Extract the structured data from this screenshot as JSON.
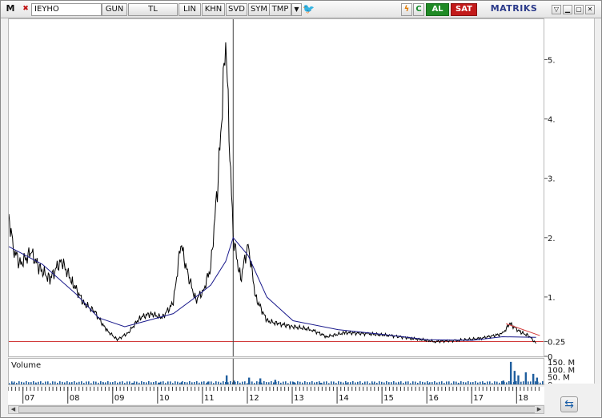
{
  "toolbar": {
    "logo": "M",
    "symbol": "IEYHO",
    "period": "GUN",
    "currency": "TL",
    "scale": "LIN",
    "khn": "KHN",
    "svd": "SVD",
    "sym": "SYM",
    "tmp": "TMP",
    "buy_label": "AL",
    "sell_label": "SAT",
    "brand": "MATRIKS"
  },
  "volume_panel": {
    "title": "Volume",
    "axis_labels": [
      "150. M",
      "100. M",
      "50. M",
      "0"
    ]
  },
  "colors": {
    "price": "#000000",
    "moving_average": "#1a1a8c",
    "support_line": "#d23a3a",
    "volume_bars": "#1f5e9e",
    "buy": "#1f8a25",
    "sell": "#c21a1a"
  },
  "chart_data": {
    "type": "line",
    "series": [
      {
        "values": [
          {
            "x": "2006-09",
            "y": 2.4
          },
          {
            "x": "2006-10",
            "y": 1.85
          },
          {
            "x": "2006-12",
            "y": 1.55
          },
          {
            "x": "2007-03",
            "y": 1.75
          },
          {
            "x": "2007-05",
            "y": 1.5
          },
          {
            "x": "2007-08",
            "y": 1.3
          },
          {
            "x": "2007-11",
            "y": 1.62
          },
          {
            "x": "2008-02",
            "y": 1.25
          },
          {
            "x": "2008-05",
            "y": 0.9
          },
          {
            "x": "2008-08",
            "y": 0.75
          },
          {
            "x": "2008-11",
            "y": 0.45
          },
          {
            "x": "2009-02",
            "y": 0.28
          },
          {
            "x": "2009-05",
            "y": 0.4
          },
          {
            "x": "2009-08",
            "y": 0.65
          },
          {
            "x": "2009-11",
            "y": 0.72
          },
          {
            "x": "2010-02",
            "y": 0.65
          },
          {
            "x": "2010-05",
            "y": 0.9
          },
          {
            "x": "2010-07",
            "y": 1.9
          },
          {
            "x": "2010-09",
            "y": 1.35
          },
          {
            "x": "2010-11",
            "y": 0.95
          },
          {
            "x": "2011-01",
            "y": 1.1
          },
          {
            "x": "2011-03",
            "y": 1.5
          },
          {
            "x": "2011-05",
            "y": 3.0
          },
          {
            "x": "2011-07",
            "y": 5.3
          },
          {
            "x": "2011-09",
            "y": 2.0
          },
          {
            "x": "2011-11",
            "y": 1.3
          },
          {
            "x": "2012-01",
            "y": 1.9
          },
          {
            "x": "2012-03",
            "y": 1.0
          },
          {
            "x": "2012-06",
            "y": 0.6
          },
          {
            "x": "2012-09",
            "y": 0.55
          },
          {
            "x": "2013-01",
            "y": 0.5
          },
          {
            "x": "2013-06",
            "y": 0.45
          },
          {
            "x": "2013-10",
            "y": 0.33
          },
          {
            "x": "2014-03",
            "y": 0.4
          },
          {
            "x": "2014-09",
            "y": 0.38
          },
          {
            "x": "2015-03",
            "y": 0.35
          },
          {
            "x": "2015-09",
            "y": 0.3
          },
          {
            "x": "2016-03",
            "y": 0.25
          },
          {
            "x": "2016-09",
            "y": 0.27
          },
          {
            "x": "2017-03",
            "y": 0.3
          },
          {
            "x": "2017-09",
            "y": 0.38
          },
          {
            "x": "2017-11",
            "y": 0.55
          },
          {
            "x": "2018-02",
            "y": 0.4
          },
          {
            "x": "2018-04",
            "y": 0.35
          },
          {
            "x": "2018-06",
            "y": 0.22
          }
        ]
      },
      {
        "values": [
          {
            "x": "2006-09",
            "y": 1.85
          },
          {
            "x": "2007-06",
            "y": 1.55
          },
          {
            "x": "2008-03",
            "y": 1.05
          },
          {
            "x": "2008-09",
            "y": 0.65
          },
          {
            "x": "2009-04",
            "y": 0.5
          },
          {
            "x": "2009-10",
            "y": 0.6
          },
          {
            "x": "2010-05",
            "y": 0.72
          },
          {
            "x": "2010-11",
            "y": 1.0
          },
          {
            "x": "2011-03",
            "y": 1.2
          },
          {
            "x": "2011-07",
            "y": 1.6
          },
          {
            "x": "2011-09",
            "y": 2.0
          },
          {
            "x": "2012-01",
            "y": 1.7
          },
          {
            "x": "2012-06",
            "y": 1.0
          },
          {
            "x": "2013-01",
            "y": 0.6
          },
          {
            "x": "2014-01",
            "y": 0.45
          },
          {
            "x": "2015-01",
            "y": 0.37
          },
          {
            "x": "2016-01",
            "y": 0.28
          },
          {
            "x": "2017-01",
            "y": 0.27
          },
          {
            "x": "2017-09",
            "y": 0.33
          },
          {
            "x": "2018-06",
            "y": 0.32
          }
        ]
      }
    ],
    "support_line_value": 0.25,
    "trend_line": [
      {
        "x": "2017-10",
        "y": 0.55
      },
      {
        "x": "2018-07",
        "y": 0.35
      }
    ],
    "xlabels": [
      "07",
      "08",
      "09",
      "10",
      "11",
      "12",
      "13",
      "14",
      "15",
      "16",
      "17",
      "18"
    ],
    "yticks": [
      "5.",
      "4.",
      "3.",
      "2.",
      "1.",
      "0.25",
      "0"
    ],
    "ylim": [
      0,
      5.6
    ],
    "grid": false,
    "volume": [
      {
        "x": "2006-10",
        "y": 8
      },
      {
        "x": "2007-04",
        "y": 6
      },
      {
        "x": "2008-01",
        "y": 5
      },
      {
        "x": "2008-10",
        "y": 7
      },
      {
        "x": "2009-06",
        "y": 9
      },
      {
        "x": "2010-01",
        "y": 12
      },
      {
        "x": "2010-07",
        "y": 15
      },
      {
        "x": "2011-02",
        "y": 18
      },
      {
        "x": "2011-07",
        "y": 60
      },
      {
        "x": "2011-09",
        "y": 25
      },
      {
        "x": "2012-01",
        "y": 45
      },
      {
        "x": "2012-04",
        "y": 40
      },
      {
        "x": "2012-08",
        "y": 30
      },
      {
        "x": "2013-01",
        "y": 15
      },
      {
        "x": "2013-08",
        "y": 10
      },
      {
        "x": "2014-03",
        "y": 8
      },
      {
        "x": "2014-10",
        "y": 7
      },
      {
        "x": "2015-05",
        "y": 6
      },
      {
        "x": "2016-01",
        "y": 5
      },
      {
        "x": "2016-09",
        "y": 6
      },
      {
        "x": "2017-04",
        "y": 10
      },
      {
        "x": "2017-09",
        "y": 25
      },
      {
        "x": "2017-11",
        "y": 150
      },
      {
        "x": "2017-12",
        "y": 90
      },
      {
        "x": "2018-01",
        "y": 60
      },
      {
        "x": "2018-03",
        "y": 80
      },
      {
        "x": "2018-05",
        "y": 70
      },
      {
        "x": "2018-06",
        "y": 45
      }
    ]
  }
}
